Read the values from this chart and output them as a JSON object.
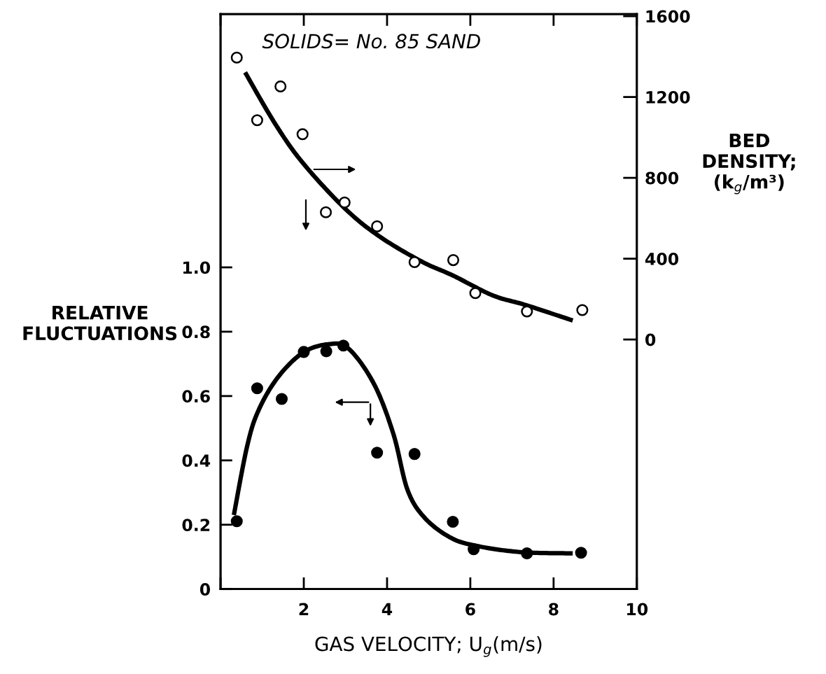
{
  "chart_data": {
    "type": "scatter",
    "xlabel": "GAS VELOCITY; U$_{g}$(m/s)",
    "ylabel": "RELATIVE\nFLUCTUATIONS",
    "y2label": "BED\nDENSITY;\n(k$_{g}$/m³)",
    "annotations": [
      "SOLIDS= No. 85 SAND"
    ],
    "xlim": [
      0,
      10
    ],
    "xticks": [
      {
        "value": 0,
        "label": null
      },
      2,
      4,
      6,
      8,
      10
    ],
    "ylim": [
      0,
      1.787
    ],
    "yticks": [
      0,
      0.2,
      0.4,
      0.6,
      0.8,
      {
        "value": 1,
        "label": "1.0"
      }
    ],
    "y2lim": [
      -1235,
      1610
    ],
    "y2ticks": [
      0,
      400,
      800,
      1200,
      1600
    ],
    "grid": false,
    "legend": false,
    "marker": "circle",
    "series": [
      {
        "axis": "y2",
        "color": "#000000",
        "x": [
          0.39,
          0.88,
          1.44,
          1.97,
          2.53,
          2.98,
          3.76,
          4.66,
          5.59,
          6.12,
          7.36,
          8.69
        ],
        "values": [
          1395,
          1085,
          1252,
          1016,
          630,
          678,
          560,
          383,
          393,
          230,
          139,
          146
        ]
      },
      {
        "type": "line",
        "axis": "y2",
        "color": "#000000",
        "marker": "none",
        "x": [
          0.59,
          1.31,
          1.98,
          2.98,
          3.81,
          4.83,
          5.58,
          6.53,
          7.34,
          8.46
        ],
        "values": [
          1322,
          1068,
          873,
          650,
          511,
          386,
          317,
          219,
          170,
          94
        ]
      },
      {
        "color": "#000000",
        "x": [
          0.39,
          0.88,
          1.47,
          2.0,
          2.54,
          2.95,
          3.76,
          4.66,
          5.58,
          6.08,
          7.36,
          8.66
        ],
        "values": [
          0.211,
          0.624,
          0.591,
          0.737,
          0.739,
          0.757,
          0.424,
          0.42,
          0.209,
          0.124,
          0.111,
          0.113
        ]
      },
      {
        "type": "line",
        "color": "#000000",
        "marker": "none",
        "x": [
          0.32,
          0.63,
          0.9,
          1.37,
          1.98,
          2.59,
          3.07,
          3.68,
          4.15,
          4.49,
          4.9,
          5.51,
          6.12,
          7.2,
          8.46
        ],
        "values": [
          0.23,
          0.439,
          0.552,
          0.657,
          0.735,
          0.761,
          0.748,
          0.639,
          0.483,
          0.309,
          0.222,
          0.161,
          0.135,
          0.115,
          0.111
        ]
      }
    ]
  }
}
